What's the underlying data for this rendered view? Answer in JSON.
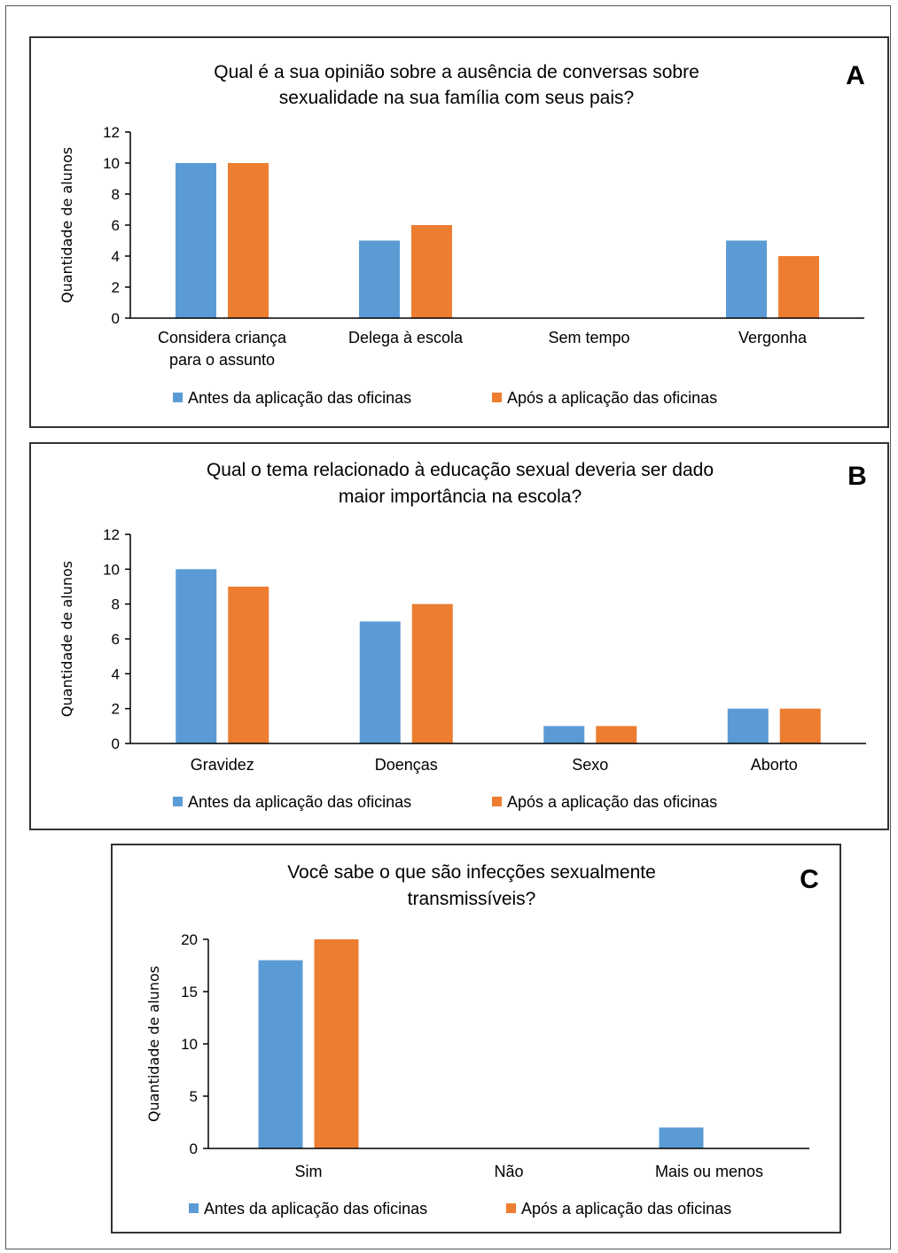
{
  "colors": {
    "antes": "#5b9bd5",
    "apos": "#ed7d31",
    "axis": "#000000"
  },
  "chart_data": [
    {
      "type": "bar",
      "panel": "A",
      "title": [
        "Qual é a sua opinião sobre a ausência de conversas sobre",
        "sexualidade na sua família com seus pais?"
      ],
      "ylabel": "Quantidade de alunos",
      "xlabel": "",
      "ylim": [
        0,
        12
      ],
      "yticks": [
        0,
        2,
        4,
        6,
        8,
        10,
        12
      ],
      "categories": [
        [
          "Considera criança",
          "para o assunto"
        ],
        [
          "Delega à escola"
        ],
        [
          "Sem tempo"
        ],
        [
          "Vergonha"
        ]
      ],
      "series": [
        {
          "name": "Antes da aplicação das oficinas",
          "values": [
            10,
            5,
            0,
            5
          ]
        },
        {
          "name": "Após a aplicação das oficinas",
          "values": [
            10,
            6,
            0,
            4
          ]
        }
      ],
      "legend": "bottom",
      "grid": false
    },
    {
      "type": "bar",
      "panel": "B",
      "title": [
        "Qual o tema relacionado à educação sexual deveria ser dado",
        "maior importância na escola?"
      ],
      "ylabel": "Quantidade de alunos",
      "xlabel": "",
      "ylim": [
        0,
        12
      ],
      "yticks": [
        0,
        2,
        4,
        6,
        8,
        10,
        12
      ],
      "categories": [
        [
          "Gravidez"
        ],
        [
          "Doenças"
        ],
        [
          "Sexo"
        ],
        [
          "Aborto"
        ]
      ],
      "series": [
        {
          "name": "Antes da aplicação das oficinas",
          "values": [
            10,
            7,
            1,
            2
          ]
        },
        {
          "name": "Após a aplicação das oficinas",
          "values": [
            9,
            8,
            1,
            2
          ]
        }
      ],
      "legend": "bottom",
      "grid": false
    },
    {
      "type": "bar",
      "panel": "C",
      "title": [
        "Você sabe o que são infecções sexualmente",
        "transmissíveis?"
      ],
      "ylabel": "Quantidade de alunos",
      "xlabel": "",
      "ylim": [
        0,
        20
      ],
      "yticks": [
        0,
        5,
        10,
        15,
        20
      ],
      "categories": [
        [
          "Sim"
        ],
        [
          "Não"
        ],
        [
          "Mais ou menos"
        ]
      ],
      "series": [
        {
          "name": "Antes da aplicação das oficinas",
          "values": [
            18,
            0,
            2
          ]
        },
        {
          "name": "Após a aplicação das oficinas",
          "values": [
            20,
            0,
            0
          ]
        }
      ],
      "legend": "bottom",
      "grid": false
    }
  ]
}
